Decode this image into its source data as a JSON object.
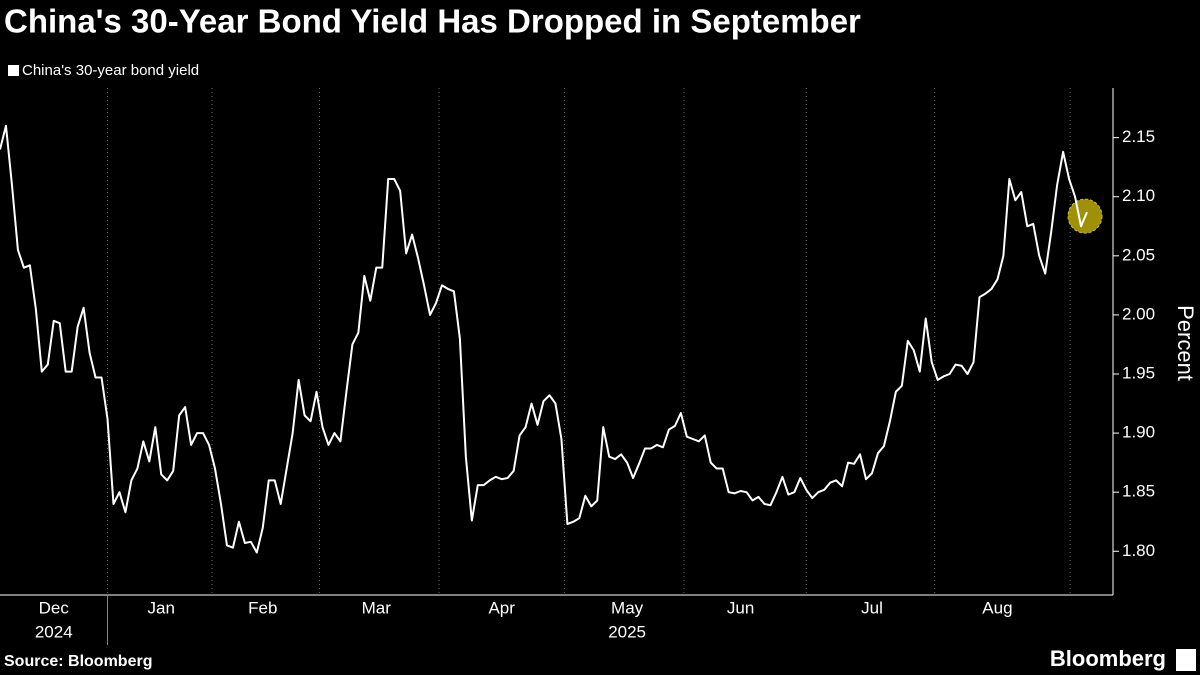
{
  "chart_data": {
    "type": "line",
    "title": "China's 30-Year Bond Yield Has Dropped in September",
    "y_label": "Percent",
    "source": "Source: Bloomberg",
    "brand": "Bloomberg",
    "categories": [
      null,
      null,
      null,
      null,
      null,
      null,
      null,
      null,
      null,
      "Dec",
      null,
      null,
      null,
      null,
      null,
      null,
      null,
      null,
      null,
      null,
      null,
      null,
      null,
      null,
      null,
      null,
      null,
      "Jan",
      null,
      null,
      null,
      null,
      null,
      null,
      null,
      null,
      null,
      null,
      null,
      null,
      null,
      null,
      null,
      null,
      "Feb",
      null,
      null,
      null,
      null,
      null,
      null,
      null,
      null,
      null,
      null,
      null,
      null,
      null,
      null,
      null,
      null,
      null,
      null,
      "Mar",
      null,
      null,
      null,
      null,
      null,
      null,
      null,
      null,
      null,
      null,
      null,
      null,
      null,
      null,
      null,
      null,
      null,
      null,
      null,
      null,
      "Apr",
      null,
      null,
      null,
      null,
      null,
      null,
      null,
      null,
      null,
      null,
      null,
      null,
      null,
      null,
      null,
      null,
      null,
      null,
      null,
      null,
      "May",
      null,
      null,
      null,
      null,
      null,
      null,
      null,
      null,
      null,
      null,
      null,
      null,
      null,
      null,
      null,
      null,
      null,
      null,
      "Jun",
      null,
      null,
      null,
      null,
      null,
      null,
      null,
      null,
      null,
      null,
      null,
      null,
      null,
      null,
      null,
      null,
      null,
      null,
      null,
      null,
      null,
      "Jul",
      null,
      null,
      null,
      null,
      null,
      null,
      null,
      null,
      null,
      null,
      null,
      null,
      null,
      null,
      null,
      null,
      null,
      null,
      null,
      null,
      "Aug",
      null,
      null,
      null,
      null,
      null,
      null,
      null,
      null,
      null,
      null,
      null,
      null,
      null,
      null,
      null
    ],
    "category_years": [
      null,
      null,
      null,
      null,
      null,
      null,
      null,
      null,
      null,
      "2024",
      null,
      null,
      null,
      null,
      null,
      null,
      null,
      null,
      null,
      null,
      null,
      null,
      null,
      null,
      null,
      null,
      null,
      null,
      null,
      null,
      null,
      null,
      null,
      null,
      null,
      null,
      null,
      null,
      null,
      null,
      null,
      null,
      null,
      null,
      null,
      null,
      null,
      null,
      null,
      null,
      null,
      null,
      null,
      null,
      null,
      null,
      null,
      null,
      null,
      null,
      null,
      null,
      null,
      null,
      null,
      null,
      null,
      null,
      null,
      null,
      null,
      null,
      null,
      null,
      null,
      null,
      null,
      null,
      null,
      null,
      null,
      null,
      null,
      null,
      null,
      null,
      null,
      null,
      null,
      null,
      null,
      null,
      null,
      null,
      null,
      null,
      null,
      null,
      null,
      null,
      null,
      null,
      null,
      null,
      null,
      "2025",
      null,
      null,
      null,
      null,
      null,
      null,
      null,
      null,
      null,
      null,
      null,
      null,
      null,
      null,
      null,
      null,
      null,
      null,
      null,
      null,
      null,
      null,
      null,
      null,
      null,
      null,
      null,
      null,
      null,
      null,
      null,
      null,
      null,
      null,
      null,
      null,
      null,
      null,
      null,
      null,
      null,
      null,
      null,
      null,
      null,
      null,
      null,
      null,
      null,
      null,
      null,
      null,
      null,
      null,
      null,
      null,
      null,
      null,
      null,
      null,
      null,
      null,
      null,
      null,
      null,
      null,
      null,
      null,
      null,
      null,
      null,
      null,
      null,
      null,
      null,
      null,
      null
    ],
    "series": [
      {
        "name": "China's 30-year bond yield",
        "color": "#ffffff",
        "values": [
          2.14,
          2.16,
          2.11,
          2.055,
          2.04,
          2.042,
          2.005,
          1.952,
          1.958,
          1.995,
          1.993,
          1.952,
          1.952,
          1.99,
          2.006,
          1.968,
          1.947,
          1.947,
          1.912,
          1.84,
          1.85,
          1.833,
          1.86,
          1.87,
          1.893,
          1.876,
          1.905,
          1.865,
          1.86,
          1.868,
          1.915,
          1.922,
          1.89,
          1.9,
          1.9,
          1.89,
          1.87,
          1.84,
          1.805,
          1.803,
          1.825,
          1.807,
          1.808,
          1.799,
          1.82,
          1.86,
          1.86,
          1.84,
          1.87,
          1.9,
          1.945,
          1.915,
          1.91,
          1.935,
          1.905,
          1.89,
          1.9,
          1.893,
          1.935,
          1.975,
          1.985,
          2.033,
          2.012,
          2.04,
          2.04,
          2.115,
          2.115,
          2.105,
          2.052,
          2.068,
          2.048,
          2.025,
          2.0,
          2.01,
          2.025,
          2.022,
          2.02,
          1.98,
          1.88,
          1.826,
          1.856,
          1.856,
          1.86,
          1.863,
          1.861,
          1.862,
          1.868,
          1.898,
          1.905,
          1.925,
          1.907,
          1.927,
          1.932,
          1.925,
          1.895,
          1.823,
          1.825,
          1.828,
          1.847,
          1.838,
          1.843,
          1.905,
          1.88,
          1.878,
          1.882,
          1.875,
          1.862,
          1.874,
          1.887,
          1.887,
          1.89,
          1.888,
          1.903,
          1.906,
          1.917,
          1.897,
          1.895,
          1.893,
          1.898,
          1.875,
          1.87,
          1.87,
          1.85,
          1.849,
          1.851,
          1.85,
          1.843,
          1.846,
          1.84,
          1.839,
          1.85,
          1.863,
          1.848,
          1.85,
          1.862,
          1.852,
          1.845,
          1.85,
          1.852,
          1.858,
          1.86,
          1.855,
          1.875,
          1.874,
          1.882,
          1.861,
          1.866,
          1.883,
          1.889,
          1.91,
          1.935,
          1.94,
          1.978,
          1.97,
          1.952,
          1.997,
          1.96,
          1.945,
          1.948,
          1.95,
          1.958,
          1.957,
          1.95,
          1.96,
          2.015,
          2.018,
          2.022,
          2.03,
          2.05,
          2.115,
          2.097,
          2.104,
          2.075,
          2.077,
          2.05,
          2.035,
          2.07,
          2.11,
          2.138,
          2.115,
          2.1,
          2.075,
          2.087
        ]
      }
    ],
    "ylim": [
      1.763,
      2.192
    ],
    "yticks": [
      {
        "value": 1.8,
        "label": "1.80"
      },
      1.85,
      {
        "value": 1.9,
        "label": "1.90"
      },
      1.95,
      {
        "value": 2.0,
        "label": "2.00"
      },
      2.05,
      {
        "value": 2.1,
        "label": "2.10"
      },
      2.15
    ],
    "highlight_color": "#d4c20a"
  }
}
